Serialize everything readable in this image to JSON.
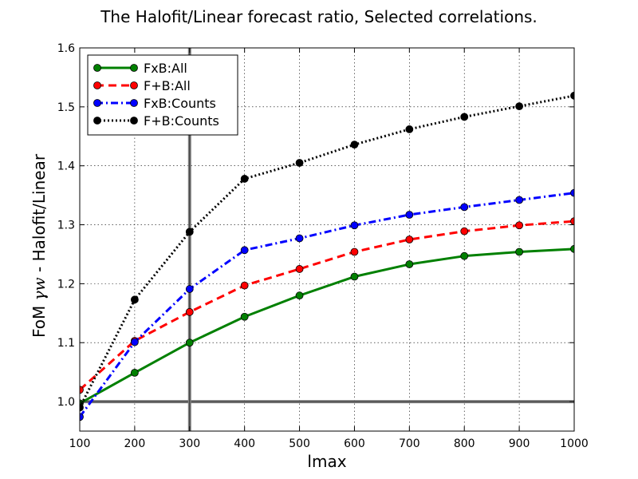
{
  "chart_data": {
    "type": "line",
    "title": "The Halofit/Linear forecast ratio, Selected correlations.",
    "xlabel": "lmax",
    "ylabel_prefix": "FoM ",
    "ylabel_math": "γw",
    "ylabel_suffix": " - Halofit/Linear",
    "xlim": [
      100,
      1000
    ],
    "ylim": [
      0.95,
      1.6
    ],
    "xticks": [
      100,
      200,
      300,
      400,
      500,
      600,
      700,
      800,
      900,
      1000
    ],
    "yticks": [
      1.0,
      1.1,
      1.2,
      1.3,
      1.4,
      1.5,
      1.6
    ],
    "ytick_labels": [
      "1.0",
      "1.1",
      "1.2",
      "1.3",
      "1.4",
      "1.5",
      "1.6"
    ],
    "grid": true,
    "legend_position": "top-left",
    "reference_lines": {
      "hline": 1.0,
      "vline": 300
    },
    "x": [
      100,
      200,
      300,
      400,
      500,
      600,
      700,
      800,
      900,
      1000
    ],
    "series": [
      {
        "name": "FxB:All",
        "color": "#008000",
        "dash": "solid",
        "values": [
          0.997,
          1.049,
          1.1,
          1.144,
          1.18,
          1.212,
          1.233,
          1.247,
          1.254,
          1.259
        ]
      },
      {
        "name": "F+B:All",
        "color": "#ff0000",
        "dash": "dashed",
        "values": [
          1.02,
          1.103,
          1.152,
          1.197,
          1.225,
          1.254,
          1.275,
          1.289,
          1.299,
          1.306
        ]
      },
      {
        "name": "FxB:Counts",
        "color": "#0000ff",
        "dash": "dashdot",
        "values": [
          0.974,
          1.101,
          1.191,
          1.257,
          1.277,
          1.299,
          1.317,
          1.33,
          1.342,
          1.354
        ]
      },
      {
        "name": "F+B:Counts",
        "color": "#000000",
        "dash": "dotted",
        "values": [
          0.99,
          1.173,
          1.288,
          1.378,
          1.405,
          1.436,
          1.462,
          1.483,
          1.501,
          1.519
        ]
      }
    ]
  }
}
